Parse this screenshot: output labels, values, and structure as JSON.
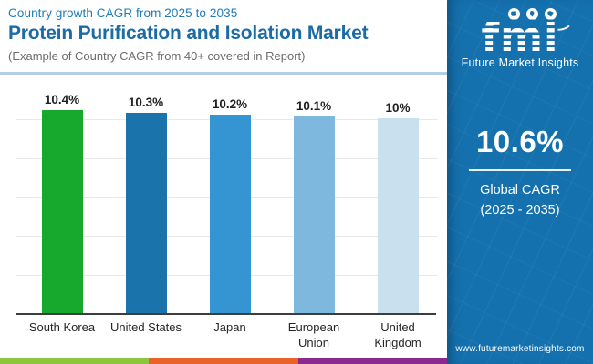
{
  "header": {
    "eyebrow": "Country growth CAGR from 2025 to 2035",
    "title": "Protein Purification and Isolation Market",
    "subtitle": "(Example of Country CAGR from 40+ covered in Report)"
  },
  "chart_data": {
    "type": "bar",
    "title": "Protein Purification and Isolation Market — Country growth CAGR from 2025 to 2035",
    "categories": [
      "South Korea",
      "United States",
      "Japan",
      "European Union",
      "United Kingdom"
    ],
    "values": [
      10.4,
      10.3,
      10.2,
      10.1,
      10.0
    ],
    "value_labels": [
      "10.4%",
      "10.3%",
      "10.2%",
      "10.1%",
      "10%"
    ],
    "bar_colors": [
      "#17a82e",
      "#1a73aa",
      "#3595d2",
      "#7eb8de",
      "#c9e0ef"
    ],
    "xlabel": "",
    "ylabel": "",
    "ylim": [
      0,
      11.8
    ],
    "gridline_values": [
      2,
      4,
      6,
      8,
      10
    ],
    "grid": true,
    "legend": false
  },
  "sidebar": {
    "background_color": "#1471ae",
    "logo_text": "fmi",
    "logo_caption": "Future Market Insights",
    "globe_icons": [
      "globe-americas-icon",
      "globe-europe-africa-icon",
      "globe-asia-icon"
    ],
    "stat_value": "10.6%",
    "stat_line1": "Global CAGR",
    "stat_line2": "(2025 - 2035)",
    "website": "www.futuremarketinsights.com"
  },
  "footer": {
    "strip_colors": [
      "#8cc63f",
      "#e9622a",
      "#8a2a8e"
    ]
  },
  "style_colors": {
    "eyebrow_text": "#1e7cb8",
    "title_text": "#1b6ba5",
    "subtitle_text": "#6d6d6d",
    "separator": "#b5cfe2",
    "axis_line": "#3d3d3d",
    "gridline": "#e9e9e9",
    "value_label_text": "#1f1f1f"
  }
}
